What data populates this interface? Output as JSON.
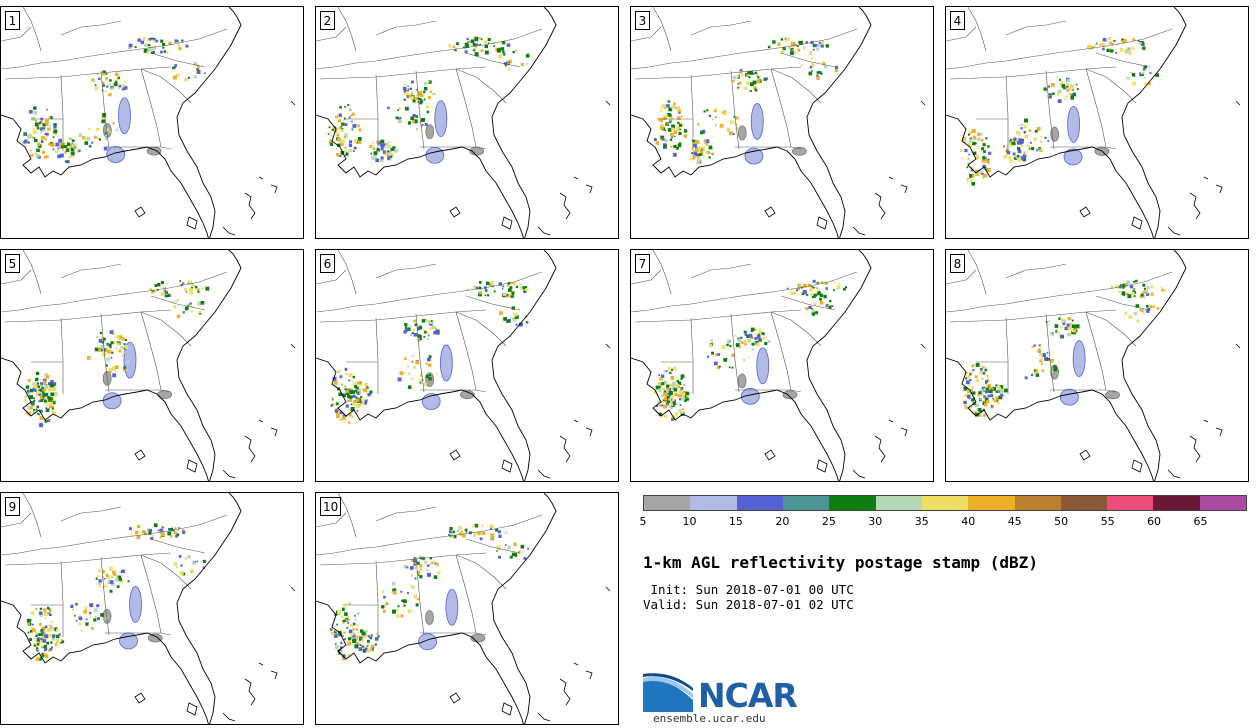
{
  "members": [
    "1",
    "2",
    "3",
    "4",
    "5",
    "6",
    "7",
    "8",
    "9",
    "10"
  ],
  "colorbar": {
    "colors": [
      "#a6a6a6",
      "#b2bbe6",
      "#5661d6",
      "#4e9494",
      "#0f7e12",
      "#b6dab8",
      "#efe065",
      "#eeb027",
      "#b98030",
      "#8b5838",
      "#ee4e7c",
      "#6b1838",
      "#aa4ca4"
    ],
    "ticks": [
      "5",
      "10",
      "15",
      "20",
      "25",
      "30",
      "35",
      "40",
      "45",
      "50",
      "55",
      "60",
      "65"
    ]
  },
  "title": "1-km AGL reflectivity postage stamp (dBZ)",
  "init": " Init: Sun 2018-07-01 00 UTC",
  "valid": "Valid: Sun 2018-07-01 02 UTC",
  "logo": {
    "text": "NCAR",
    "site": "ensemble.ucar.edu"
  }
}
